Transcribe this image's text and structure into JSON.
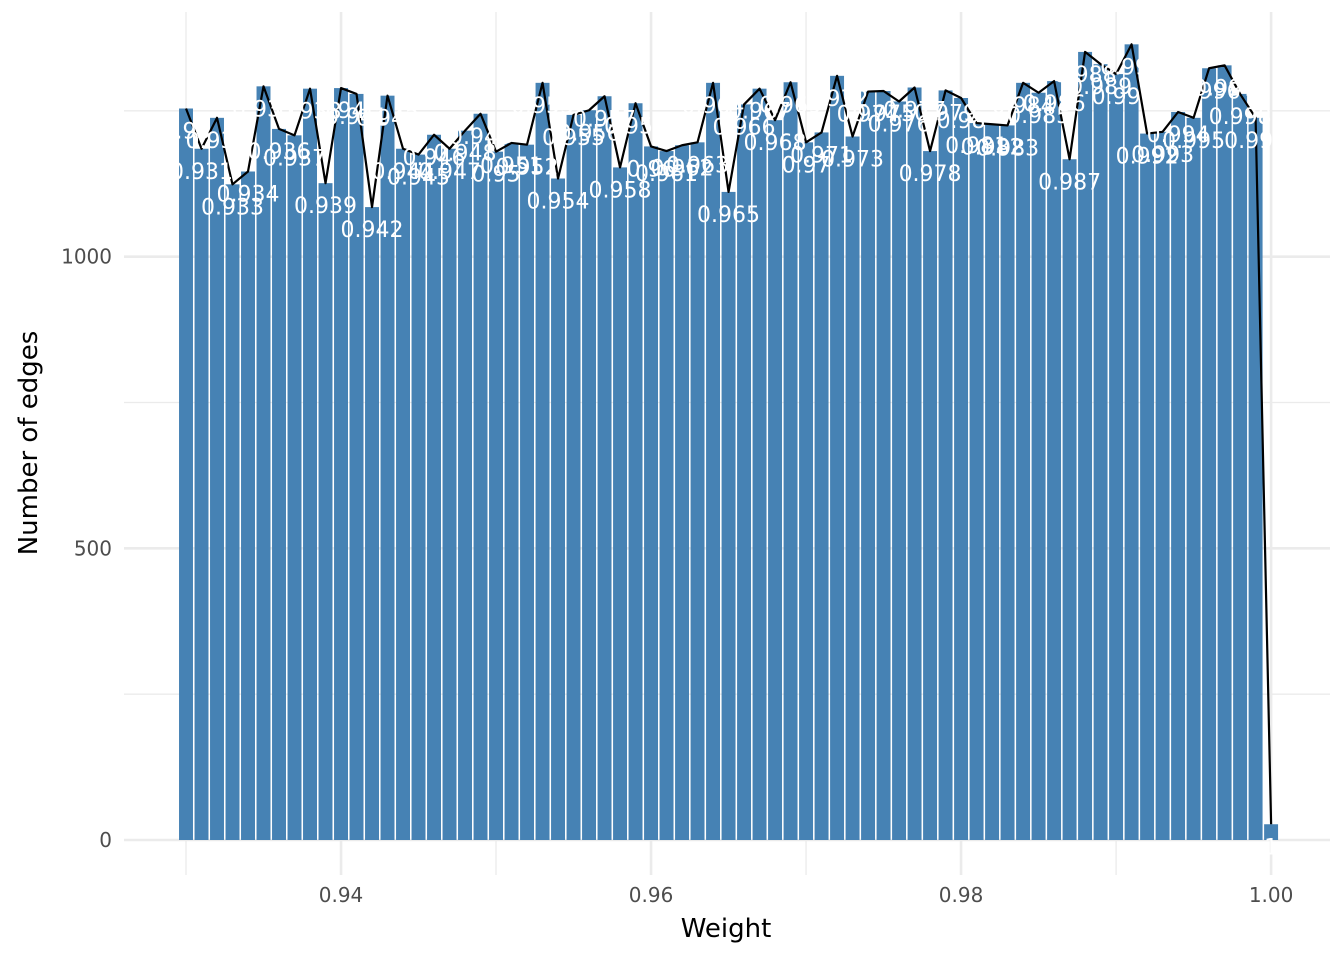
{
  "chart_data": {
    "type": "bar",
    "title": "",
    "xlabel": "Weight",
    "ylabel": "Number of edges",
    "xlim": [
      0.926,
      1.0038
    ],
    "ylim": [
      -60,
      1440
    ],
    "x_ticks": [
      0.94,
      0.96,
      0.98,
      1.0
    ],
    "x_tick_labels": [
      "0.94",
      "0.96",
      "0.98",
      "1.00"
    ],
    "y_ticks": [
      0,
      500,
      1000
    ],
    "y_tick_labels": [
      "0",
      "500",
      "1000"
    ],
    "grid": true,
    "legend": "none",
    "colors": {
      "bar": "#4682b4",
      "line": "#000000",
      "label": "#ffffff",
      "grid": "#ebebeb"
    },
    "overlay_line": "frequency polygon through bar tops",
    "x": [
      0.93,
      0.931,
      0.932,
      0.933,
      0.934,
      0.935,
      0.936,
      0.937,
      0.938,
      0.939,
      0.94,
      0.941,
      0.942,
      0.943,
      0.944,
      0.945,
      0.946,
      0.947,
      0.948,
      0.949,
      0.95,
      0.951,
      0.952,
      0.953,
      0.954,
      0.955,
      0.956,
      0.957,
      0.958,
      0.959,
      0.96,
      0.961,
      0.962,
      0.963,
      0.964,
      0.965,
      0.966,
      0.967,
      0.968,
      0.969,
      0.97,
      0.971,
      0.972,
      0.973,
      0.974,
      0.975,
      0.976,
      0.977,
      0.978,
      0.979,
      0.98,
      0.981,
      0.982,
      0.983,
      0.984,
      0.985,
      0.986,
      0.987,
      0.988,
      0.989,
      0.99,
      0.991,
      0.992,
      0.993,
      0.994,
      0.995,
      0.996,
      0.997,
      0.998,
      0.999,
      1.0
    ],
    "values": [
      1254,
      1185,
      1238,
      1124,
      1146,
      1292,
      1219,
      1208,
      1288,
      1126,
      1289,
      1279,
      1085,
      1276,
      1185,
      1175,
      1209,
      1185,
      1216,
      1245,
      1180,
      1195,
      1192,
      1298,
      1134,
      1243,
      1251,
      1275,
      1153,
      1263,
      1189,
      1181,
      1191,
      1196,
      1298,
      1111,
      1261,
      1288,
      1234,
      1299,
      1196,
      1213,
      1310,
      1206,
      1283,
      1284,
      1266,
      1290,
      1181,
      1285,
      1272,
      1229,
      1227,
      1225,
      1298,
      1281,
      1301,
      1167,
      1351,
      1330,
      1313,
      1364,
      1211,
      1214,
      1248,
      1238,
      1323,
      1328,
      1279,
      1238,
      27
    ],
    "labels": [
      "0.93",
      "0.931",
      "0.932",
      "0.933",
      "0.934",
      "0.935",
      "0.936",
      "0.937",
      "0.938",
      "0.939",
      "0.94",
      "0.941",
      "0.942",
      "0.943",
      "0.944",
      "0.945",
      "0.946",
      "0.947",
      "0.948",
      "0.949",
      "0.95",
      "0.951",
      "0.952",
      "0.953",
      "0.954",
      "0.955",
      "0.956",
      "0.957",
      "0.958",
      "0.959",
      "0.96",
      "0.961",
      "0.962",
      "0.963",
      "0.964",
      "0.965",
      "0.966",
      "0.967",
      "0.968",
      "0.969",
      "0.97",
      "0.971",
      "0.972",
      "0.973",
      "0.974",
      "0.975",
      "0.976",
      "0.977",
      "0.978",
      "0.979",
      "0.98",
      "0.981",
      "0.982",
      "0.983",
      "0.984",
      "0.985",
      "0.986",
      "0.987",
      "0.988",
      "0.989",
      "0.99",
      "0.991",
      "0.992",
      "0.993",
      "0.994",
      "0.995",
      "0.996",
      "0.997",
      "0.998",
      "0.999",
      "1"
    ]
  }
}
